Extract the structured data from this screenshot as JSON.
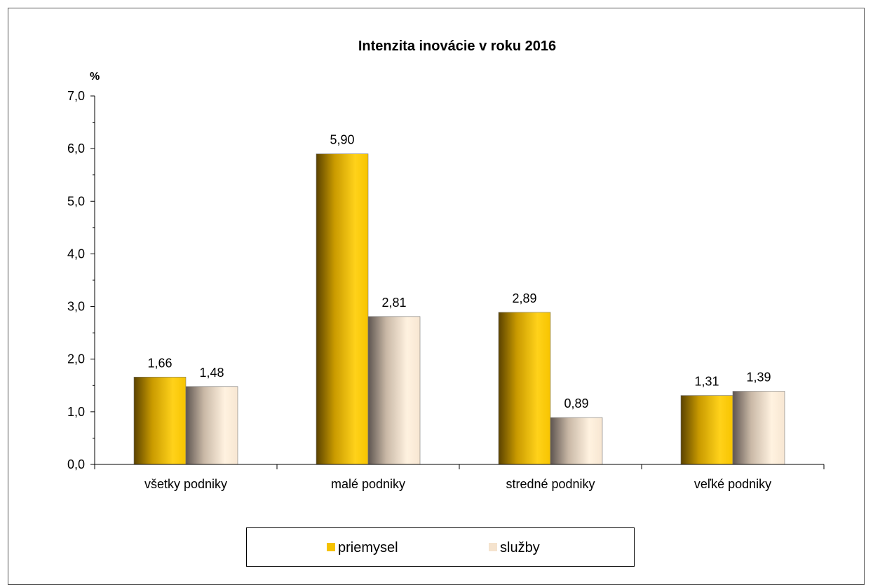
{
  "colors": {
    "priemysel": "#F5C200",
    "sluzby": "#F5E3CE"
  },
  "chart_data": {
    "type": "bar",
    "title": "Intenzita inovácie v roku 2016",
    "ylabel": "%",
    "xlabel": "",
    "ylim": [
      0,
      7
    ],
    "yticks": [
      "0,0",
      "1,0",
      "2,0",
      "3,0",
      "4,0",
      "5,0",
      "6,0",
      "7,0"
    ],
    "categories": [
      "všetky podniky",
      "malé podniky",
      "stredné podniky",
      "veľké podniky"
    ],
    "series": [
      {
        "name": "priemysel",
        "values": [
          1.66,
          5.9,
          2.89,
          1.31
        ],
        "labels": [
          "1,66",
          "5,90",
          "2,89",
          "1,31"
        ]
      },
      {
        "name": "služby",
        "values": [
          1.48,
          2.81,
          0.89,
          1.39
        ],
        "labels": [
          "1,48",
          "2,81",
          "0,89",
          "1,39"
        ]
      }
    ],
    "legend_position": "bottom",
    "grid": false
  }
}
